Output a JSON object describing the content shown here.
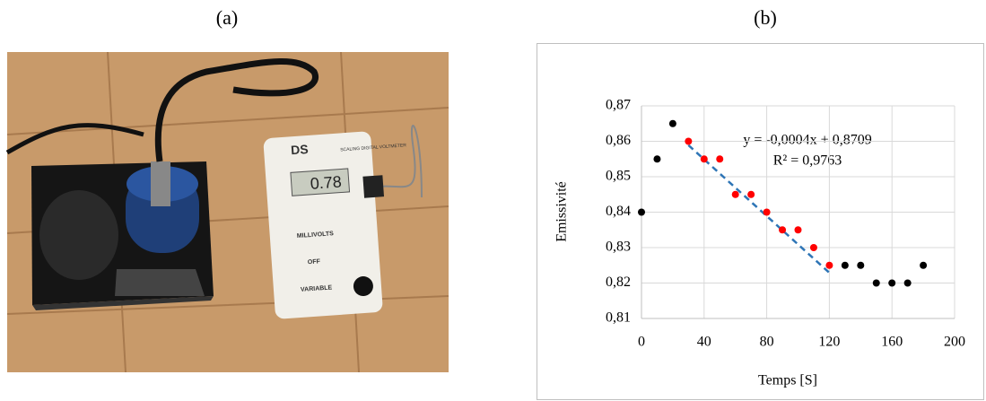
{
  "photo": {
    "panel_label": "(a)",
    "brand": "DS",
    "device_name": "SCALING DIGITAL VOLTMETER",
    "display": "0.78",
    "millivolts": "MILLIVOLTS",
    "off": "OFF",
    "variable": "VARIABLE"
  },
  "chart_data": {
    "type": "scatter",
    "panel_label": "(b)",
    "x_label": "Temps [S]",
    "y_label": "Emissivité",
    "annotations": [
      "y = -0,0004x + 0,8709",
      "R² = 0,9763"
    ],
    "xlim": [
      0,
      200
    ],
    "xticks": [
      0,
      40,
      80,
      120,
      160,
      200
    ],
    "ylim": [
      0.81,
      0.87
    ],
    "yticks": [
      {
        "value": 0.81,
        "label": "0,81"
      },
      {
        "value": 0.82,
        "label": "0,82"
      },
      {
        "value": 0.83,
        "label": "0,83"
      },
      {
        "value": 0.84,
        "label": "0,84"
      },
      {
        "value": 0.85,
        "label": "0,85"
      },
      {
        "value": 0.86,
        "label": "0,86"
      },
      {
        "value": 0.87,
        "label": "0,87"
      }
    ],
    "grid": true,
    "series": [
      {
        "color": "#000000",
        "x": [
          0,
          10,
          20,
          130,
          140,
          150,
          160,
          170,
          180
        ],
        "values": [
          0.84,
          0.855,
          0.865,
          0.825,
          0.825,
          0.82,
          0.82,
          0.82,
          0.825
        ]
      },
      {
        "color": "#ff0000",
        "x": [
          30,
          40,
          50,
          60,
          70,
          80,
          90,
          100,
          110,
          120
        ],
        "values": [
          0.86,
          0.855,
          0.855,
          0.845,
          0.845,
          0.84,
          0.835,
          0.835,
          0.83,
          0.825
        ]
      },
      {
        "color": "#2e75b6",
        "style": "dashed-line",
        "x": [
          30,
          120
        ],
        "values": [
          0.8589,
          0.8229
        ]
      }
    ]
  }
}
